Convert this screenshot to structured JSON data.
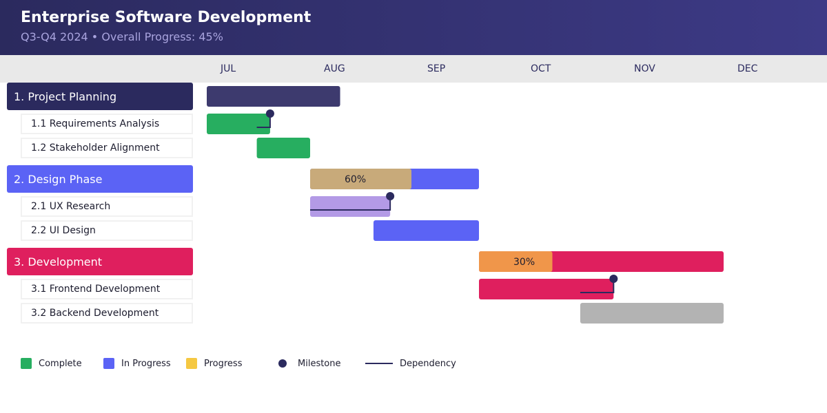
{
  "header": {
    "title": "Enterprise Software Development",
    "subtitle": "Q3-Q4 2024 • Overall Progress: 45%"
  },
  "chart_data": {
    "type": "gantt",
    "title": "Enterprise Software Development",
    "subtitle": "Q3-Q4 2024 • Overall Progress: 45%",
    "months": [
      "JUL",
      "AUG",
      "SEP",
      "OCT",
      "NOV",
      "DEC"
    ],
    "x_range": [
      "2024-07-01",
      "2025-01-01"
    ],
    "colors": {
      "complete": "#27ae60",
      "in_progress": "#5b63f5",
      "progress": "#f5c842",
      "milestone": "#2b2a5e",
      "dependency": "#2b2a5e",
      "pending": "#b3b3b3"
    },
    "tasks": [
      {
        "label": "1. Project Planning",
        "level": "group",
        "color": "#2b2a5e",
        "bar_color": "#3d3a6e",
        "start": "2024-07-01",
        "end": "2024-08-10",
        "progress_percent": null
      },
      {
        "label": "1.1 Requirements Analysis",
        "level": "sub",
        "bar_color": "#27ae60",
        "start": "2024-07-01",
        "end": "2024-07-20",
        "milestone": "2024-07-20",
        "dependency_from": "2024-07-16"
      },
      {
        "label": "1.2 Stakeholder Alignment",
        "level": "sub",
        "bar_color": "#27ae60",
        "start": "2024-07-16",
        "end": "2024-08-01"
      },
      {
        "label": "2. Design Phase",
        "level": "group",
        "color": "#5b63f5",
        "bar_color": "#5b63f5",
        "start": "2024-08-01",
        "end": "2024-09-20",
        "progress_percent": 60,
        "progress_label": "60%",
        "progress_color": "#c8aa7a"
      },
      {
        "label": "2.1 UX Research",
        "level": "sub",
        "bar_color": "#b39ae6",
        "start": "2024-08-01",
        "end": "2024-08-25",
        "milestone": "2024-08-25",
        "dependency_from": "2024-08-01"
      },
      {
        "label": "2.2 UI Design",
        "level": "sub",
        "bar_color": "#5b63f5",
        "start": "2024-08-20",
        "end": "2024-09-20"
      },
      {
        "label": "3. Development",
        "level": "group",
        "color": "#df1f5e",
        "bar_color": "#df1f5e",
        "start": "2024-09-20",
        "end": "2024-12-01",
        "progress_percent": 30,
        "progress_label": "30%",
        "progress_color": "#f0964a"
      },
      {
        "label": "3.1 Frontend Development",
        "level": "sub",
        "bar_color": "#df1f5e",
        "start": "2024-09-20",
        "end": "2024-10-30",
        "milestone": "2024-10-30",
        "dependency_from": "2024-10-20"
      },
      {
        "label": "3.2 Backend Development",
        "level": "sub",
        "bar_color": "#b3b3b3",
        "start": "2024-10-20",
        "end": "2024-12-01"
      }
    ]
  },
  "legend": {
    "complete": "Complete",
    "in_progress": "In Progress",
    "progress": "Progress",
    "milestone": "Milestone",
    "dependency": "Dependency"
  }
}
